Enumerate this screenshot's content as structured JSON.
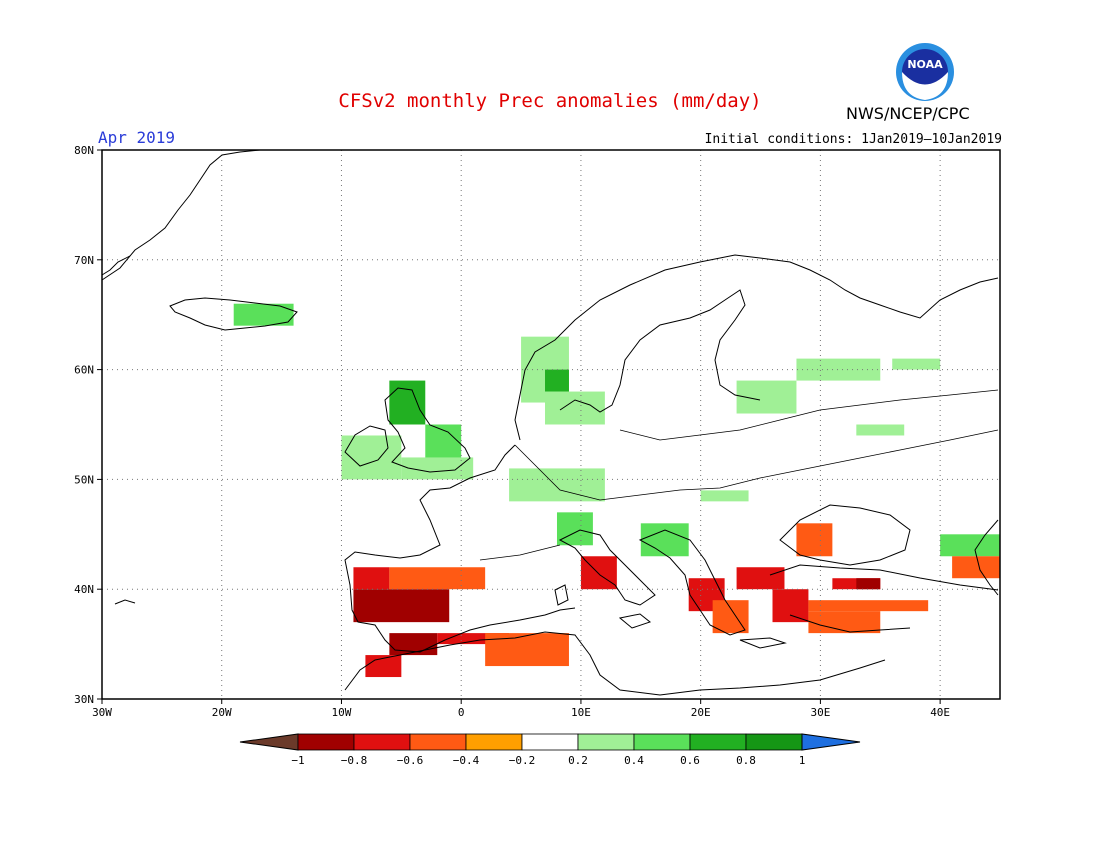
{
  "header": {
    "title": "CFSv2 monthly Prec anomalies (mm/day)",
    "month": "Apr 2019",
    "initial_conditions": "Initial conditions: 1Jan2019–10Jan2019",
    "agency": "NWS/NCEP/CPC",
    "logo_text": "NOAA"
  },
  "map": {
    "lon_range": [
      -30,
      45
    ],
    "lat_range": [
      30,
      80
    ],
    "lat_labels": [
      "80N",
      "70N",
      "60N",
      "50N",
      "40N",
      "30N"
    ],
    "lat_values": [
      80,
      70,
      60,
      50,
      40,
      30
    ],
    "lon_labels": [
      "30W",
      "20W",
      "10W",
      "0",
      "10E",
      "20E",
      "30E",
      "40E"
    ],
    "lon_values": [
      -30,
      -20,
      -10,
      0,
      10,
      20,
      30,
      40
    ],
    "gridlines": "dotted"
  },
  "legend": {
    "labels": [
      "−1",
      "−0.8",
      "−0.6",
      "−0.4",
      "−0.2",
      "0.2",
      "0.4",
      "0.6",
      "0.8",
      "1"
    ],
    "colors": [
      "#a00000",
      "#e01010",
      "#ff5a14",
      "#ff9f00",
      "#ffffff",
      "#a0f096",
      "#5ae05a",
      "#22b022",
      "#159615"
    ],
    "low_color": "#6b3a2a",
    "high_color": "#1e6fe0"
  },
  "anomalies": [
    {
      "lon": [
        -19,
        -14
      ],
      "lat": [
        64,
        66
      ],
      "level": 0.4
    },
    {
      "lon": [
        -10,
        -5
      ],
      "lat": [
        50,
        54
      ],
      "level": 0.2
    },
    {
      "lon": [
        -6,
        -3
      ],
      "lat": [
        55,
        59
      ],
      "level": 0.6
    },
    {
      "lon": [
        -3,
        0
      ],
      "lat": [
        51,
        55
      ],
      "level": 0.4
    },
    {
      "lon": [
        -5,
        1
      ],
      "lat": [
        50,
        52
      ],
      "level": 0.2
    },
    {
      "lon": [
        5,
        9
      ],
      "lat": [
        57,
        63
      ],
      "level": 0.2
    },
    {
      "lon": [
        7,
        9
      ],
      "lat": [
        58,
        60
      ],
      "level": 0.6
    },
    {
      "lon": [
        7,
        12
      ],
      "lat": [
        55,
        58
      ],
      "level": 0.2
    },
    {
      "lon": [
        4,
        12
      ],
      "lat": [
        48,
        51
      ],
      "level": 0.2
    },
    {
      "lon": [
        8,
        11
      ],
      "lat": [
        44,
        47
      ],
      "level": 0.4
    },
    {
      "lon": [
        15,
        19
      ],
      "lat": [
        43,
        46
      ],
      "level": 0.4
    },
    {
      "lon": [
        20,
        24
      ],
      "lat": [
        48,
        49
      ],
      "level": 0.2
    },
    {
      "lon": [
        23,
        28
      ],
      "lat": [
        56,
        59
      ],
      "level": 0.2
    },
    {
      "lon": [
        28,
        35
      ],
      "lat": [
        59,
        61
      ],
      "level": 0.2
    },
    {
      "lon": [
        36,
        40
      ],
      "lat": [
        60,
        61
      ],
      "level": 0.2
    },
    {
      "lon": [
        33,
        37
      ],
      "lat": [
        54,
        55
      ],
      "level": 0.2
    },
    {
      "lon": [
        40,
        45
      ],
      "lat": [
        43,
        45
      ],
      "level": 0.4
    },
    {
      "lon": [
        -9,
        -1
      ],
      "lat": [
        37,
        40
      ],
      "level": -0.8
    },
    {
      "lon": [
        -9,
        -6
      ],
      "lat": [
        40,
        42
      ],
      "level": -0.6
    },
    {
      "lon": [
        -6,
        2
      ],
      "lat": [
        40,
        42
      ],
      "level": -0.4
    },
    {
      "lon": [
        -6,
        -2
      ],
      "lat": [
        34,
        36
      ],
      "level": -0.8
    },
    {
      "lon": [
        -8,
        -5
      ],
      "lat": [
        32,
        34
      ],
      "level": -0.6
    },
    {
      "lon": [
        -2,
        4
      ],
      "lat": [
        35,
        36
      ],
      "level": -0.6
    },
    {
      "lon": [
        2,
        9
      ],
      "lat": [
        33,
        36
      ],
      "level": -0.4
    },
    {
      "lon": [
        10,
        13
      ],
      "lat": [
        40,
        43
      ],
      "level": -0.6
    },
    {
      "lon": [
        19,
        22
      ],
      "lat": [
        38,
        41
      ],
      "level": -0.6
    },
    {
      "lon": [
        21,
        24
      ],
      "lat": [
        36,
        39
      ],
      "level": -0.4
    },
    {
      "lon": [
        23,
        27
      ],
      "lat": [
        40,
        42
      ],
      "level": -0.6
    },
    {
      "lon": [
        26,
        29
      ],
      "lat": [
        37,
        40
      ],
      "level": -0.6
    },
    {
      "lon": [
        29,
        39
      ],
      "lat": [
        38,
        39
      ],
      "level": -0.4
    },
    {
      "lon": [
        31,
        35
      ],
      "lat": [
        40,
        41
      ],
      "level": -0.6
    },
    {
      "lon": [
        33,
        35
      ],
      "lat": [
        40,
        41
      ],
      "level": -0.8
    },
    {
      "lon": [
        29,
        35
      ],
      "lat": [
        36,
        38
      ],
      "level": -0.4
    },
    {
      "lon": [
        28,
        31
      ],
      "lat": [
        43,
        46
      ],
      "level": -0.4
    },
    {
      "lon": [
        41,
        45
      ],
      "lat": [
        41,
        43
      ],
      "level": -0.4
    }
  ]
}
